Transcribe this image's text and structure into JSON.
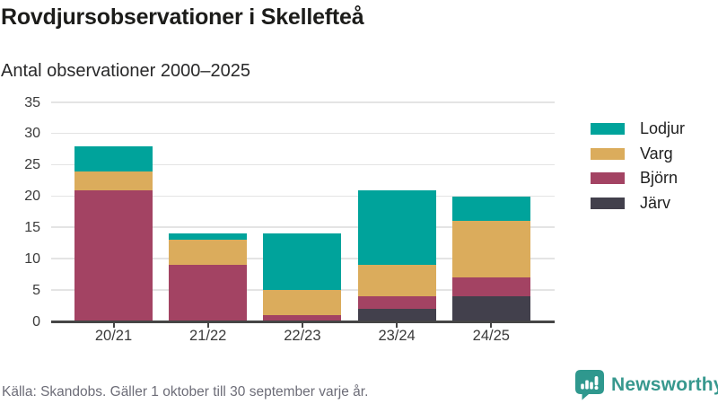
{
  "header": {
    "title": "Rovdjursobservationer i Skellefteå",
    "subtitle": "Antal observationer 2000–2025"
  },
  "chart_data": {
    "type": "bar",
    "stacked": true,
    "title": "Rovdjursobservationer i Skellefteå",
    "subtitle": "Antal observationer 2000–2025",
    "categories": [
      "20/21",
      "21/22",
      "22/23",
      "23/24",
      "24/25"
    ],
    "series": [
      {
        "name": "Lodjur",
        "color": "#00a39b",
        "values": [
          4,
          1,
          9,
          12,
          4
        ]
      },
      {
        "name": "Varg",
        "color": "#dbac5c",
        "values": [
          3,
          4,
          4,
          5,
          9
        ]
      },
      {
        "name": "Björn",
        "color": "#a34363",
        "values": [
          21,
          9,
          1,
          2,
          3
        ]
      },
      {
        "name": "Järv",
        "color": "#42404c",
        "values": [
          0,
          0,
          0,
          2,
          4
        ]
      }
    ],
    "stack_order_bottom_to_top": [
      "Järv",
      "Björn",
      "Varg",
      "Lodjur"
    ],
    "totals": [
      28,
      14,
      14,
      21,
      20
    ],
    "xlabel": "",
    "ylabel": "",
    "ylim": [
      0,
      35
    ],
    "y_ticks": [
      0,
      5,
      10,
      15,
      20,
      25,
      30,
      35
    ],
    "grid": "horizontal",
    "legend_position": "right"
  },
  "footer": {
    "source": "Källa: Skandobs. Gäller 1 oktober till 30 september varje år.",
    "brand": "Newsworthy",
    "brand_color": "#37988e"
  }
}
